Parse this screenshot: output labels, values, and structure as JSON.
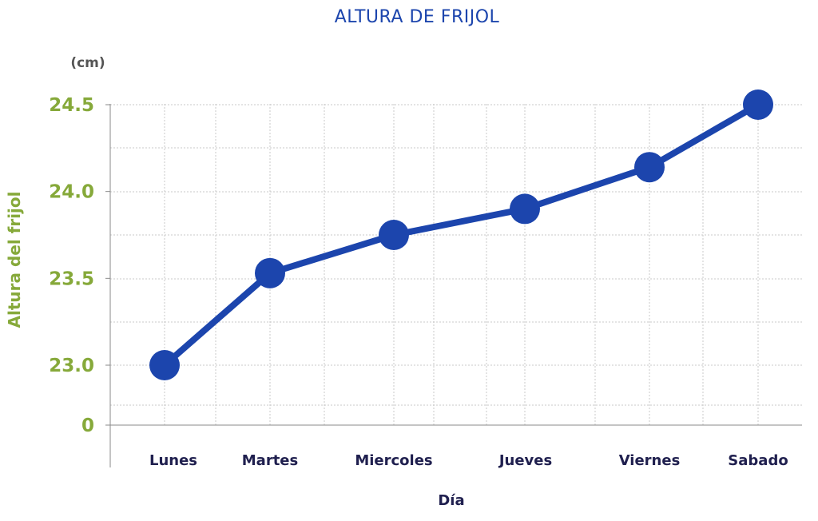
{
  "chart_data": {
    "type": "line",
    "title": "ALTURA DE FRIJOL",
    "unit_label": "(cm)",
    "ylabel": "Altura del frijol",
    "xlabel": "Día",
    "categories": [
      "Lunes",
      "Martes",
      "Miercoles",
      "Jueves",
      "Viernes",
      "Sabado"
    ],
    "series": [
      {
        "values": [
          23.0,
          23.53,
          23.75,
          23.9,
          24.14,
          24.5
        ]
      }
    ],
    "yticks": [
      {
        "label": "0",
        "value": 0
      },
      {
        "label": "23.0",
        "value": 23.0
      },
      {
        "label": "23.5",
        "value": 23.5
      },
      {
        "label": "24.0",
        "value": 24.0
      },
      {
        "label": "24.5",
        "value": 24.5
      }
    ],
    "ylim": [
      22.68,
      24.5
    ],
    "axis_break": true,
    "grid": true,
    "legend": "none",
    "colors": {
      "line": "#1c45ad",
      "marker": "#1c45ad",
      "title": "#1c45ad",
      "ytick": "#86a93a",
      "ylabel": "#86a93a",
      "xtick": "#20204f",
      "xlabel": "#20204f",
      "unit": "#555555",
      "grid": "#c8c8c8",
      "axis": "#8a8a8a"
    }
  }
}
